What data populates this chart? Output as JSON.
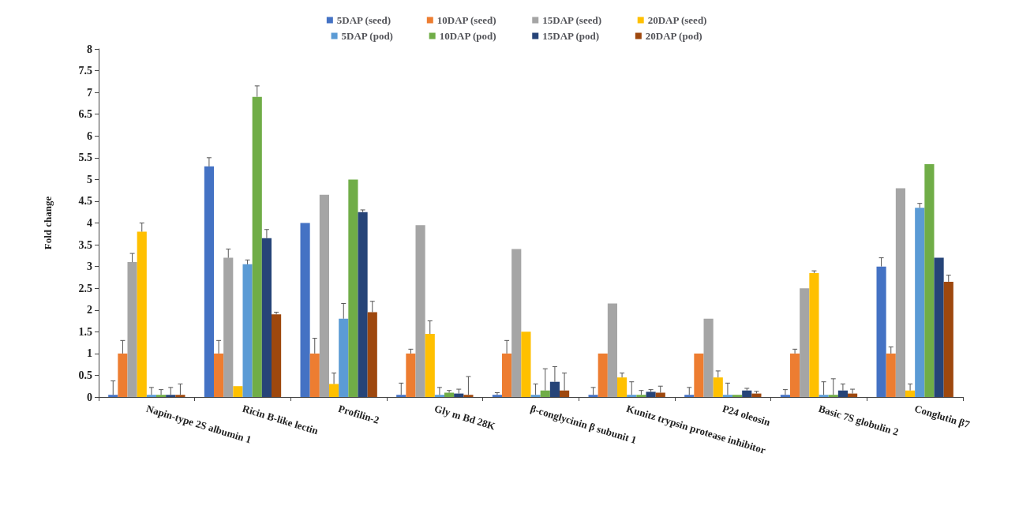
{
  "chart_data": {
    "type": "bar",
    "ylabel": "Fold change",
    "categories": [
      "Napin-type 2S albumin 1",
      "Ricin B-like lectin",
      "Profilin-2",
      "Gly m Bd 28K",
      "β-conglycinin β subunit 1",
      "Kunitz trypsin protease inhibitor",
      "P24 oleosin",
      "Basic 7S globulin 2",
      "Conglutin β7"
    ],
    "series": [
      {
        "name": "5DAP (seed)",
        "color": "#4472c4",
        "values": [
          0.05,
          5.3,
          4.0,
          0.05,
          0.05,
          0.05,
          0.05,
          0.05,
          3.0
        ],
        "errors": [
          [
            0.05,
            0.37
          ],
          [
            5.3,
            5.5
          ],
          null,
          [
            0.05,
            0.32
          ],
          [
            0.05,
            0.1
          ],
          [
            0.05,
            0.22
          ],
          [
            0.05,
            0.22
          ],
          [
            0.05,
            0.17
          ],
          [
            3.0,
            3.2
          ]
        ]
      },
      {
        "name": "10DAP (seed)",
        "color": "#ed7d31",
        "values": [
          1.0,
          1.0,
          1.0,
          1.0,
          1.0,
          1.0,
          1.0,
          1.0,
          1.0
        ],
        "errors": [
          [
            1.0,
            1.3
          ],
          [
            1.0,
            1.3
          ],
          [
            1.0,
            1.35
          ],
          [
            1.0,
            1.1
          ],
          [
            1.0,
            1.3
          ],
          null,
          null,
          [
            1.0,
            1.1
          ],
          [
            1.0,
            1.15
          ]
        ]
      },
      {
        "name": "15DAP (seed)",
        "color": "#a5a5a5",
        "values": [
          3.1,
          3.2,
          4.65,
          3.95,
          3.4,
          2.15,
          1.8,
          2.5,
          4.8
        ],
        "errors": [
          [
            3.1,
            3.3
          ],
          [
            3.2,
            3.4
          ],
          null,
          null,
          null,
          null,
          null,
          null,
          null
        ]
      },
      {
        "name": "20DAP (seed)",
        "color": "#ffc000",
        "values": [
          3.8,
          0.25,
          0.3,
          1.45,
          1.5,
          0.45,
          0.45,
          2.85,
          0.15
        ],
        "errors": [
          [
            3.8,
            4.0
          ],
          null,
          [
            0.3,
            0.55
          ],
          [
            1.45,
            1.75
          ],
          null,
          [
            0.45,
            0.55
          ],
          [
            0.45,
            0.6
          ],
          [
            2.85,
            2.9
          ],
          [
            0.15,
            0.3
          ]
        ]
      },
      {
        "name": "5DAP (pod)",
        "color": "#5b9bd5",
        "values": [
          0.05,
          3.05,
          1.8,
          0.05,
          0.05,
          0.05,
          0.05,
          0.05,
          4.35
        ],
        "errors": [
          [
            0.05,
            0.22
          ],
          [
            3.05,
            3.15
          ],
          [
            1.8,
            2.15
          ],
          [
            0.05,
            0.22
          ],
          [
            0.05,
            0.3
          ],
          [
            0.05,
            0.35
          ],
          [
            0.05,
            0.32
          ],
          [
            0.05,
            0.35
          ],
          [
            4.35,
            4.45
          ]
        ]
      },
      {
        "name": "10DAP (pod)",
        "color": "#70ad47",
        "values": [
          0.05,
          6.9,
          5.0,
          0.1,
          0.15,
          0.05,
          0.05,
          0.05,
          5.35
        ],
        "errors": [
          [
            0.05,
            0.17
          ],
          [
            6.9,
            7.15
          ],
          null,
          [
            0.1,
            0.15
          ],
          [
            0.15,
            0.65
          ],
          [
            0.05,
            0.15
          ],
          null,
          [
            0.05,
            0.42
          ],
          null
        ]
      },
      {
        "name": "15DAP (pod)",
        "color": "#264478",
        "values": [
          0.05,
          3.65,
          4.25,
          0.08,
          0.35,
          0.12,
          0.15,
          0.15,
          3.2
        ],
        "errors": [
          [
            0.05,
            0.22
          ],
          [
            3.65,
            3.85
          ],
          [
            4.25,
            4.3
          ],
          [
            0.08,
            0.18
          ],
          [
            0.35,
            0.7
          ],
          [
            0.12,
            0.17
          ],
          [
            0.15,
            0.2
          ],
          [
            0.15,
            0.3
          ],
          null
        ]
      },
      {
        "name": "20DAP (pod)",
        "color": "#9e480e",
        "values": [
          0.05,
          1.9,
          1.95,
          0.05,
          0.15,
          0.1,
          0.08,
          0.08,
          2.65
        ],
        "errors": [
          [
            0.05,
            0.3
          ],
          [
            1.9,
            1.95
          ],
          [
            1.95,
            2.2
          ],
          [
            0.05,
            0.47
          ],
          [
            0.15,
            0.55
          ],
          [
            0.1,
            0.25
          ],
          [
            0.08,
            0.13
          ],
          [
            0.08,
            0.18
          ],
          [
            2.65,
            2.8
          ]
        ]
      }
    ],
    "ylim": [
      0,
      8
    ],
    "yticks": [
      0,
      0.5,
      1,
      1.5,
      2,
      2.5,
      3,
      3.5,
      4,
      4.5,
      5,
      5.5,
      6,
      6.5,
      7,
      7.5,
      8
    ],
    "grid": false,
    "legend": "top"
  }
}
